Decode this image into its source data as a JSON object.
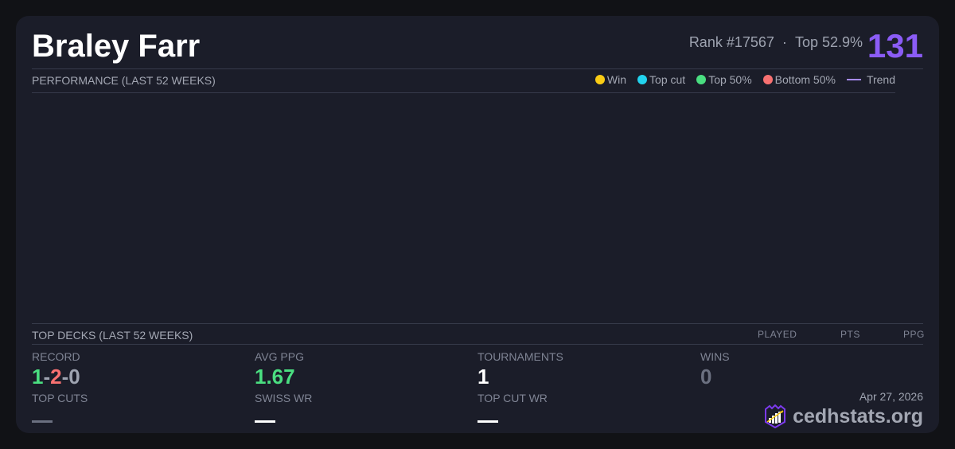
{
  "player": {
    "name": "Braley Farr",
    "rank": "Rank #17567",
    "dot": "·",
    "top": "Top 52.9%",
    "score": "131"
  },
  "performance": {
    "title": "PERFORMANCE (LAST 52 WEEKS)",
    "legend": [
      {
        "label": "Win",
        "color": "#facc15"
      },
      {
        "label": "Top cut",
        "color": "#22d3ee"
      },
      {
        "label": "Top 50%",
        "color": "#4ade80"
      },
      {
        "label": "Bottom 50%",
        "color": "#f87171"
      }
    ],
    "trend_label": "Trend",
    "trend_color": "#a78bfa"
  },
  "top_decks": {
    "title": "TOP DECKS (LAST 52 WEEKS)",
    "columns": [
      "PLAYED",
      "PTS",
      "PPG"
    ]
  },
  "stats": {
    "record_label": "RECORD",
    "record_w": "1",
    "record_l": "2",
    "record_d": "0",
    "sep": "-",
    "avg_ppg_label": "AVG PPG",
    "avg_ppg": "1.67",
    "tournaments_label": "TOURNAMENTS",
    "tournaments": "1",
    "wins_label": "WINS",
    "wins": "0",
    "top_cuts_label": "TOP CUTS",
    "swiss_wr_label": "SWISS WR",
    "top_cut_wr_label": "TOP CUT WR"
  },
  "footer": {
    "date": "Apr 27, 2026",
    "brand": "cedhstats.org"
  }
}
